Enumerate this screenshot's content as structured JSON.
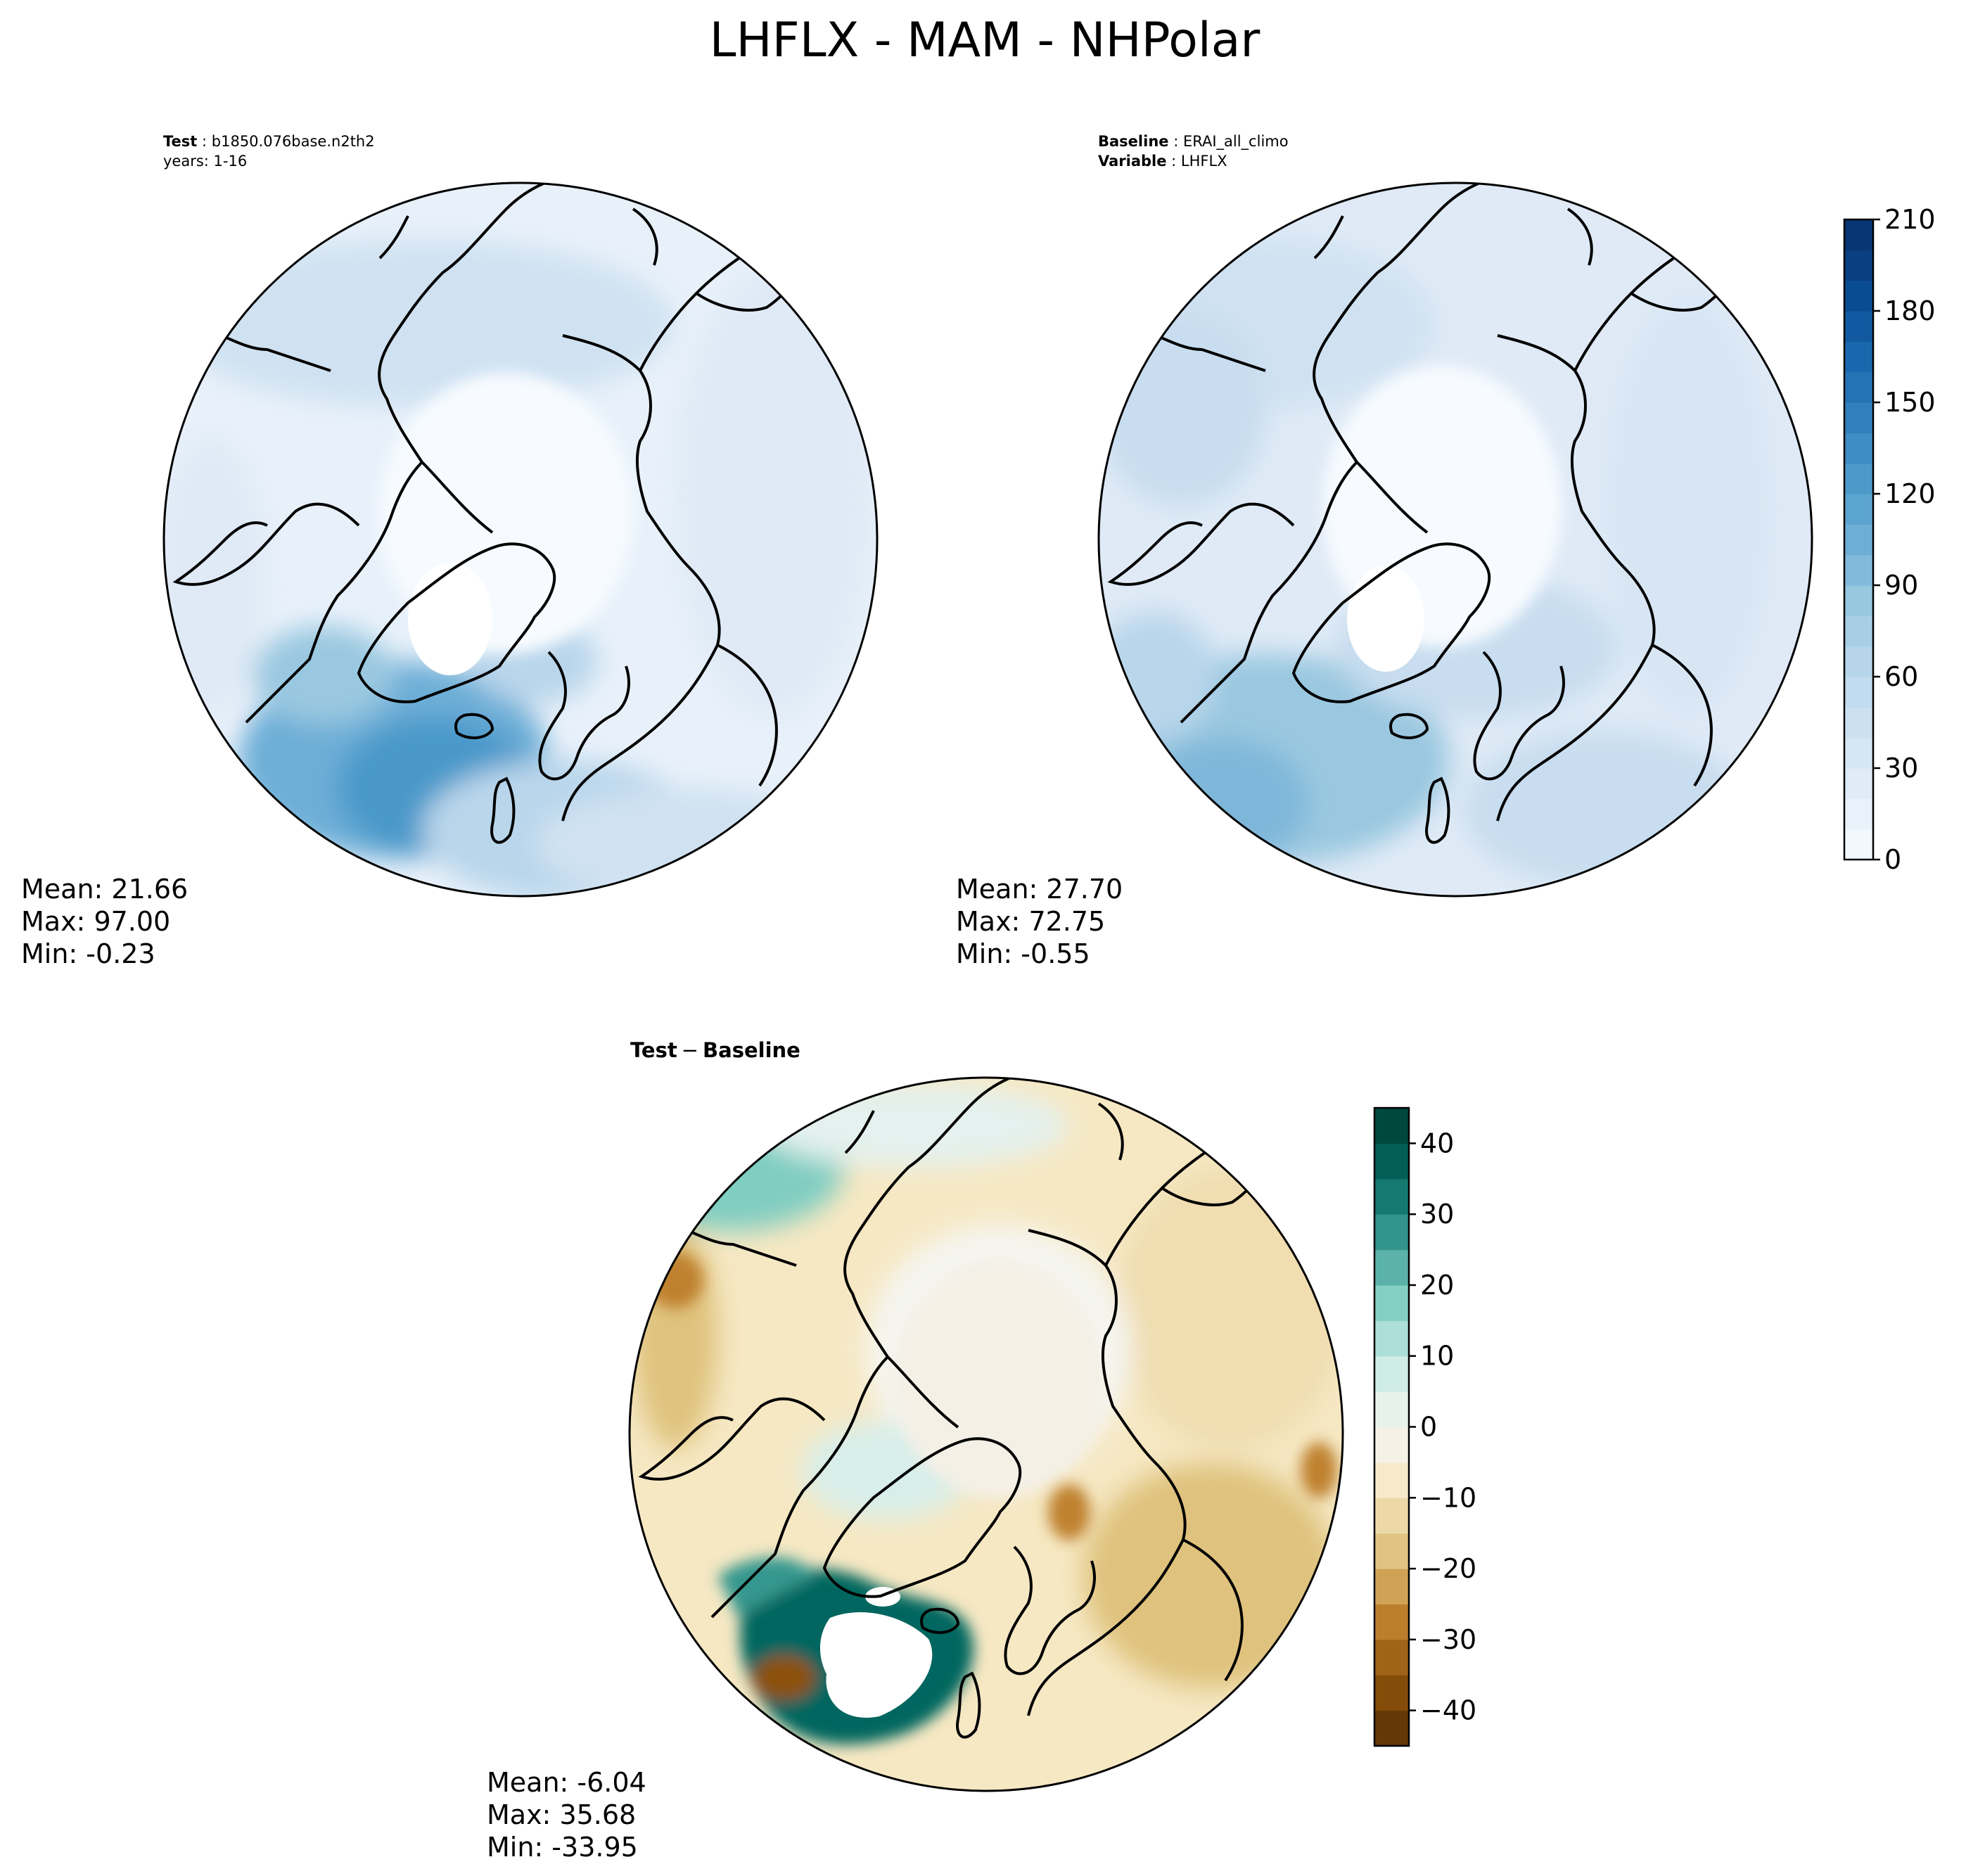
{
  "figure_title": "LHFLX - MAM - NHPolar",
  "panels": {
    "test": {
      "label_bold": "Test",
      "label_value": "b1850.076base.n2th2",
      "label_line2": "years: 1-16",
      "mean": "Mean: 21.66",
      "max": "Max: 97.00",
      "min": "Min: -0.23"
    },
    "baseline": {
      "label_bold": "Baseline",
      "label_value": "ERAI_all_climo",
      "label2_bold": "Variable",
      "label2_value": "LHFLX",
      "mean": "Mean: 27.70",
      "max": "Max: 72.75",
      "min": "Min: -0.55"
    },
    "diff": {
      "title_left": "Test",
      "title_sep": "−",
      "title_right": "Baseline",
      "mean": "Mean: -6.04",
      "max": "Max: 35.68",
      "min": "Min: -33.95"
    }
  },
  "chart_data": [
    {
      "type": "heatmap",
      "name": "test",
      "projection": "north-polar-stereographic",
      "colormap": "Blues",
      "colorbar_range": [
        0,
        210
      ],
      "colorbar_ticks": [
        "0",
        "30",
        "60",
        "90",
        "120",
        "150",
        "180",
        "210"
      ],
      "stats": {
        "mean": 21.66,
        "max": 97.0,
        "min": -0.23
      }
    },
    {
      "type": "heatmap",
      "name": "baseline",
      "projection": "north-polar-stereographic",
      "colormap": "Blues",
      "colorbar_range": [
        0,
        210
      ],
      "stats": {
        "mean": 27.7,
        "max": 72.75,
        "min": -0.55
      }
    },
    {
      "type": "heatmap",
      "name": "difference",
      "projection": "north-polar-stereographic",
      "colormap": "BrBG",
      "colorbar_range": [
        -45,
        45
      ],
      "colorbar_ticks": [
        "40",
        "30",
        "20",
        "10",
        "0",
        "−10",
        "−20",
        "−30",
        "−40"
      ],
      "stats": {
        "mean": -6.04,
        "max": 35.68,
        "min": -33.95
      }
    }
  ],
  "colors": {
    "blues": [
      "#f7fbff",
      "#e3eef9",
      "#d0e2f2",
      "#b9d6eb",
      "#9ac8e0",
      "#6daed7",
      "#4a98c9",
      "#2e7ebc",
      "#1563aa",
      "#08468b",
      "#08306b"
    ],
    "brbg": [
      "#543005",
      "#8c510a",
      "#bf812d",
      "#dfc27d",
      "#f6e8c3",
      "#f5f5f0",
      "#c7eae5",
      "#80cdc1",
      "#35978f",
      "#01665e",
      "#003c30"
    ],
    "land_outline": "#000000"
  }
}
